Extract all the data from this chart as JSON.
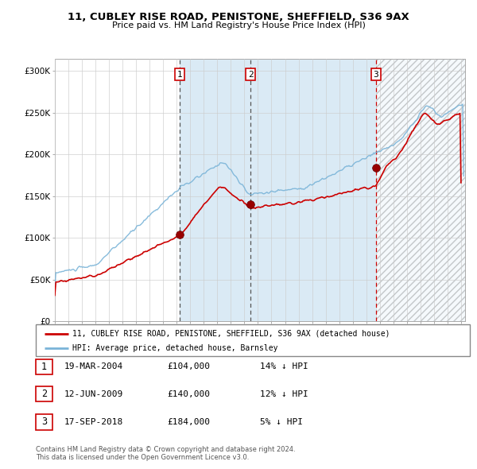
{
  "title_line1": "11, CUBLEY RISE ROAD, PENISTONE, SHEFFIELD, S36 9AX",
  "title_line2": "Price paid vs. HM Land Registry's House Price Index (HPI)",
  "yticks": [
    0,
    50000,
    100000,
    150000,
    200000,
    250000,
    300000
  ],
  "ytick_labels": [
    "£0",
    "£50K",
    "£100K",
    "£150K",
    "£200K",
    "£250K",
    "£300K"
  ],
  "xlim_start": 1995.0,
  "xlim_end": 2025.3,
  "ylim": [
    0,
    315000
  ],
  "sale_dates": [
    2004.21,
    2009.45,
    2018.71
  ],
  "sale_prices": [
    104000,
    140000,
    184000
  ],
  "sale_labels": [
    "1",
    "2",
    "3"
  ],
  "legend_label_red": "11, CUBLEY RISE ROAD, PENISTONE, SHEFFIELD, S36 9AX (detached house)",
  "legend_label_blue": "HPI: Average price, detached house, Barnsley",
  "table_entries": [
    {
      "num": "1",
      "date": "19-MAR-2004",
      "price": "£104,000",
      "pct": "14% ↓ HPI"
    },
    {
      "num": "2",
      "date": "12-JUN-2009",
      "price": "£140,000",
      "pct": "12% ↓ HPI"
    },
    {
      "num": "3",
      "date": "17-SEP-2018",
      "price": "£184,000",
      "pct": "5% ↓ HPI"
    }
  ],
  "footer": "Contains HM Land Registry data © Crown copyright and database right 2024.\nThis data is licensed under the Open Government Licence v3.0.",
  "hpi_color": "#7ab4d8",
  "price_color": "#cc0000",
  "sale_dot_color": "#990000",
  "shading_color": "#daeaf5",
  "grid_color": "#cccccc"
}
